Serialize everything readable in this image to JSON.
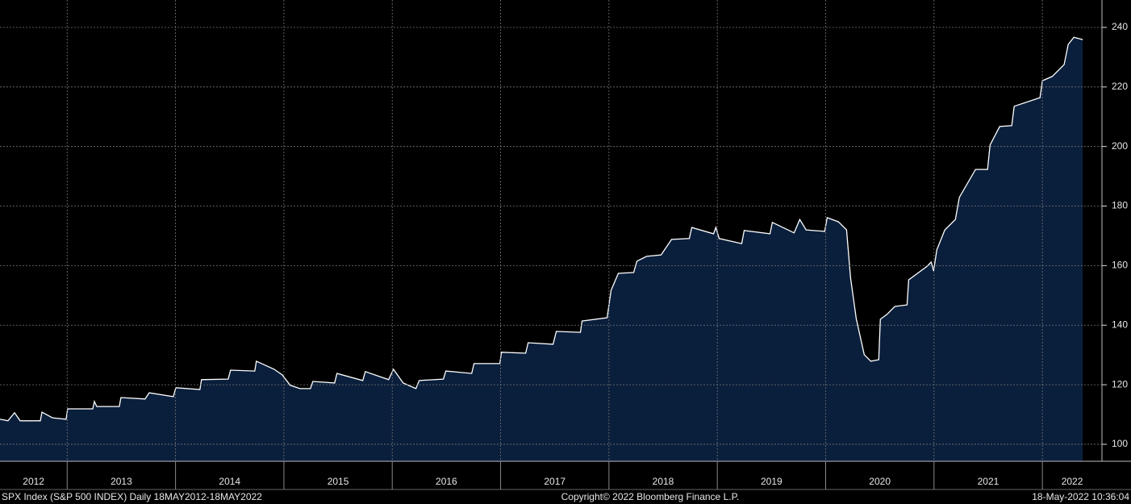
{
  "chart_data": {
    "type": "area",
    "x": [
      2012.38,
      2012.454,
      2012.514,
      2012.566,
      2012.752,
      2012.767,
      2012.864,
      2012.99,
      2013.005,
      2013.236,
      2013.251,
      2013.273,
      2013.481,
      2013.496,
      2013.719,
      2013.757,
      2013.98,
      2014.002,
      2014.225,
      2014.24,
      2014.486,
      2014.508,
      2014.731,
      2014.746,
      2014.91,
      2014.984,
      2015.059,
      2015.148,
      2015.245,
      2015.267,
      2015.468,
      2015.49,
      2015.728,
      2015.751,
      2015.966,
      2016.011,
      2016.1,
      2016.219,
      2016.249,
      2016.472,
      2016.495,
      2016.733,
      2016.755,
      2016.993,
      2017.008,
      2017.231,
      2017.254,
      2017.484,
      2017.514,
      2017.737,
      2017.752,
      2017.983,
      2018.02,
      2018.087,
      2018.228,
      2018.258,
      2018.347,
      2018.481,
      2018.578,
      2018.742,
      2018.764,
      2018.965,
      2018.987,
      2019.017,
      2019.225,
      2019.248,
      2019.486,
      2019.508,
      2019.709,
      2019.761,
      2019.82,
      2019.991,
      2020.014,
      2020.118,
      2020.193,
      2020.23,
      2020.282,
      2020.356,
      2020.416,
      2020.49,
      2020.505,
      2020.565,
      2020.639,
      2020.751,
      2020.766,
      2020.937,
      2020.974,
      2020.996,
      2021.026,
      2021.1,
      2021.197,
      2021.234,
      2021.383,
      2021.494,
      2021.517,
      2021.606,
      2021.718,
      2021.74,
      2021.978,
      2022.0,
      2022.09,
      2022.201,
      2022.239,
      2022.291,
      2022.373
    ],
    "values": [
      108.4,
      107.9,
      110.6,
      107.9,
      107.9,
      110.8,
      108.9,
      108.4,
      111.9,
      111.9,
      114.4,
      112.7,
      112.7,
      115.7,
      115.2,
      117.3,
      116.0,
      119.0,
      118.4,
      121.7,
      121.9,
      124.9,
      124.6,
      127.9,
      125.2,
      123.3,
      119.8,
      118.7,
      118.7,
      121.1,
      120.6,
      123.8,
      121.4,
      124.4,
      121.7,
      125.2,
      120.6,
      118.7,
      121.4,
      121.9,
      124.6,
      123.8,
      127.1,
      127.1,
      130.9,
      130.6,
      134.1,
      133.6,
      137.9,
      137.6,
      141.4,
      142.5,
      151.7,
      157.4,
      157.7,
      161.5,
      163.1,
      163.6,
      168.8,
      169.1,
      172.8,
      170.7,
      172.8,
      169.1,
      167.4,
      171.8,
      170.7,
      174.5,
      171.0,
      175.5,
      172.0,
      171.5,
      176.1,
      174.7,
      172.0,
      155.8,
      142.2,
      130.1,
      127.9,
      128.4,
      142.0,
      143.6,
      146.3,
      146.8,
      155.2,
      159.8,
      161.2,
      158.2,
      165.3,
      172.0,
      175.5,
      182.9,
      192.3,
      192.3,
      200.5,
      206.7,
      207.0,
      213.5,
      216.4,
      222.1,
      223.5,
      227.5,
      234.3,
      236.7,
      235.9
    ],
    "fill_color": "#0a1f3c",
    "line_color": "#ffffff",
    "xlim": [
      2012.38,
      2022.55
    ],
    "xticks": [
      2012,
      2013,
      2014,
      2015,
      2016,
      2017,
      2018,
      2019,
      2020,
      2021,
      2022
    ],
    "ylim": [
      94.3,
      249.2
    ],
    "yticks": [
      100,
      120,
      140,
      160,
      180,
      200,
      220,
      240
    ],
    "grid": true,
    "annotations": [
      "SPX Index (S&P 500 INDEX)  Daily 18MAY2012-18MAY2022",
      "Copyright© 2022 Bloomberg Finance L.P.",
      "18-May-2022 10:36:04"
    ]
  }
}
